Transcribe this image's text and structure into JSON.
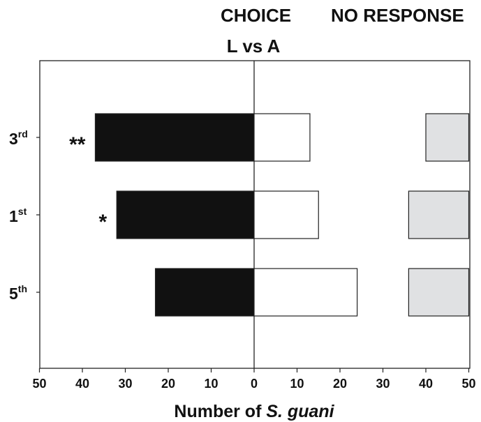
{
  "header": {
    "choice": "CHOICE",
    "no_response": "NO RESPONSE"
  },
  "title": "L vs A",
  "xlabel_prefix": "Number of ",
  "xlabel_italic": "S. guani",
  "colors": {
    "left_bar": "#111111",
    "right_bar": "#ffffff",
    "no_response_bar": "#e0e1e3",
    "axis": "#222222"
  },
  "chart_data": {
    "type": "bar",
    "orientation": "horizontal",
    "categories": [
      {
        "main": "3",
        "sup": "rd"
      },
      {
        "main": "1",
        "sup": "st"
      },
      {
        "main": "5",
        "sup": "th"
      }
    ],
    "series": [
      {
        "values": [
          37,
          32,
          23
        ]
      },
      {
        "values": [
          13,
          15,
          24
        ]
      },
      {
        "values": [
          10,
          14,
          14
        ]
      }
    ],
    "significance": [
      "**",
      "*",
      ""
    ],
    "xlim_left": [
      50,
      0
    ],
    "xlim_right": [
      0,
      50
    ],
    "x_ticks_left": [
      "50",
      "40",
      "30",
      "20",
      "10",
      "0"
    ],
    "x_ticks_right": [
      "10",
      "20",
      "30",
      "40",
      "50"
    ],
    "center_value": 0,
    "right_max": 50,
    "grid": false
  }
}
